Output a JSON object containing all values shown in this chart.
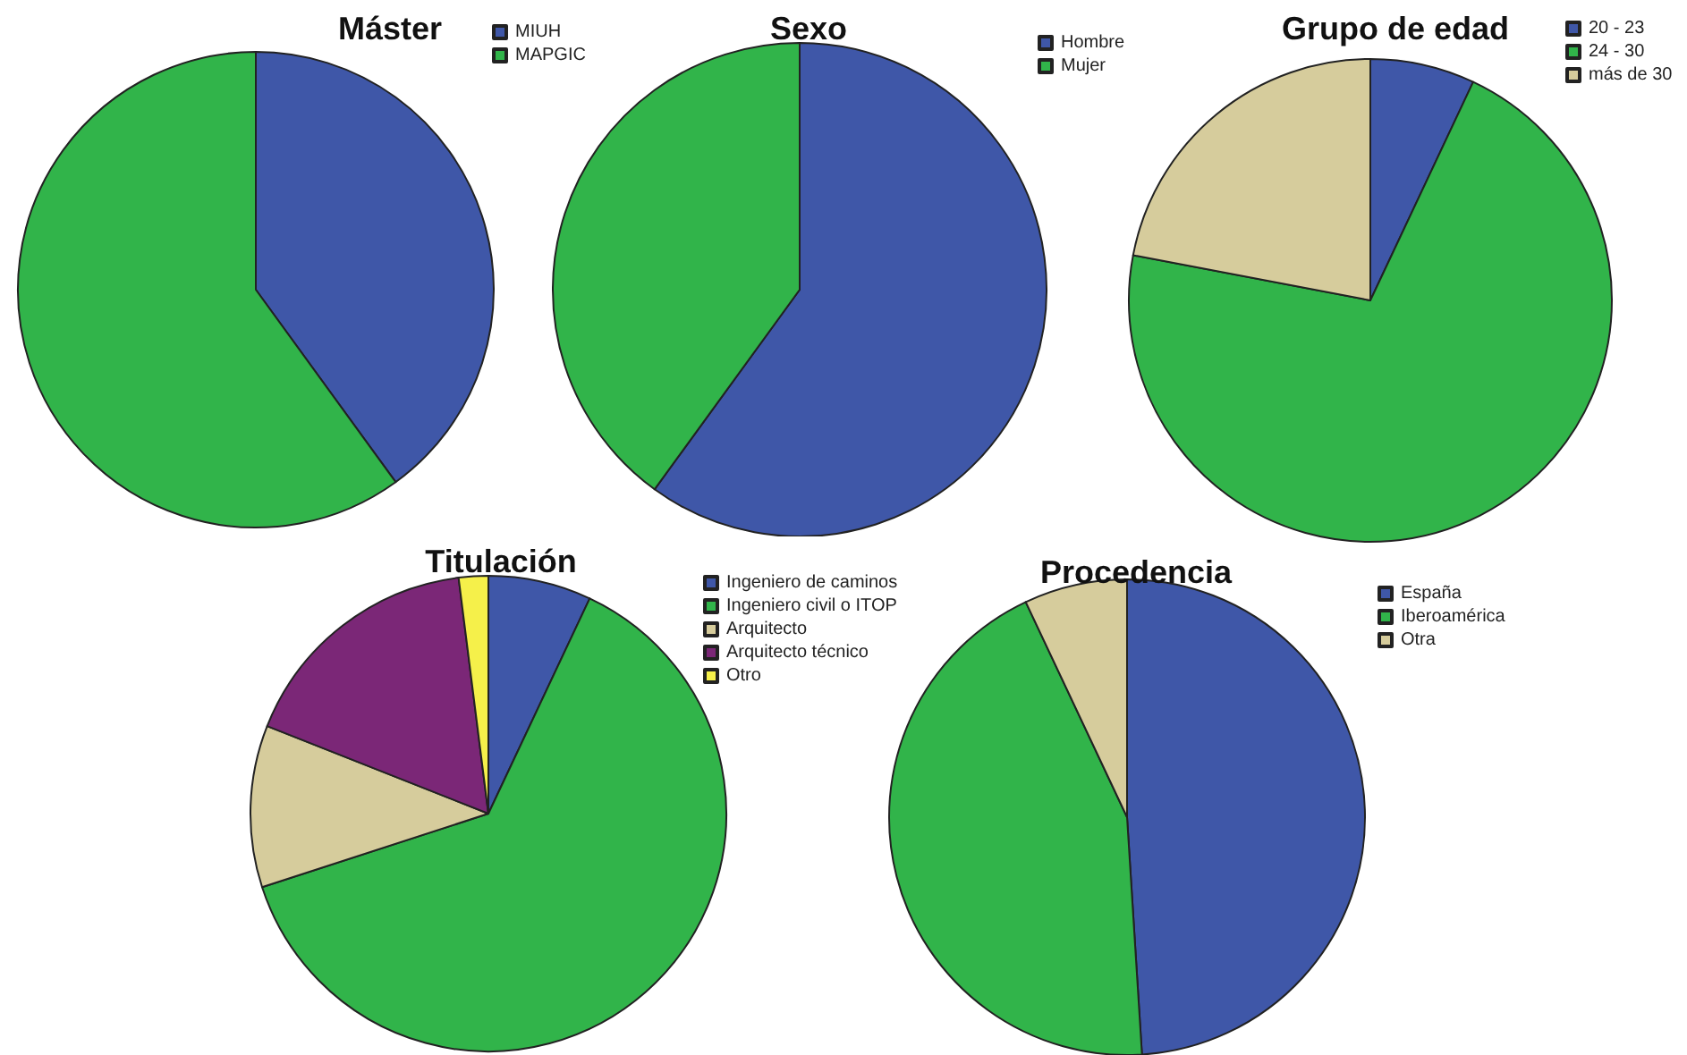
{
  "chart_data": [
    {
      "type": "pie",
      "title": "Máster",
      "categories": [
        "MIUH",
        "MAPGIC"
      ],
      "values": [
        40,
        60
      ],
      "colors": [
        "#3f57a8",
        "#31b44a"
      ],
      "legend": "top right"
    },
    {
      "type": "pie",
      "title": "Sexo",
      "categories": [
        "Hombre",
        "Mujer"
      ],
      "values": [
        60,
        40
      ],
      "colors": [
        "#3f57a8",
        "#31b44a"
      ],
      "legend": "top right"
    },
    {
      "type": "pie",
      "title": "Grupo de edad",
      "categories": [
        "20 - 23",
        "24 - 30",
        "más de 30"
      ],
      "values": [
        7,
        71,
        22
      ],
      "colors": [
        "#3f57a8",
        "#31b44a",
        "#d6cc9c"
      ],
      "legend": "top right"
    },
    {
      "type": "pie",
      "title": "Titulación",
      "categories": [
        "Ingeniero de caminos",
        "Ingeniero civil o ITOP",
        "Arquitecto",
        "Arquitecto técnico",
        "Otro"
      ],
      "values": [
        7,
        63,
        11,
        17,
        2
      ],
      "colors": [
        "#3f57a8",
        "#31b44a",
        "#d6cc9c",
        "#7b2777",
        "#f5f04a"
      ],
      "legend": "top right"
    },
    {
      "type": "pie",
      "title": "Procedencia",
      "categories": [
        "España",
        "Iberoamérica",
        "Otra"
      ],
      "values": [
        49,
        44,
        7
      ],
      "colors": [
        "#3f57a8",
        "#31b44a",
        "#d6cc9c"
      ],
      "legend": "top right"
    }
  ]
}
